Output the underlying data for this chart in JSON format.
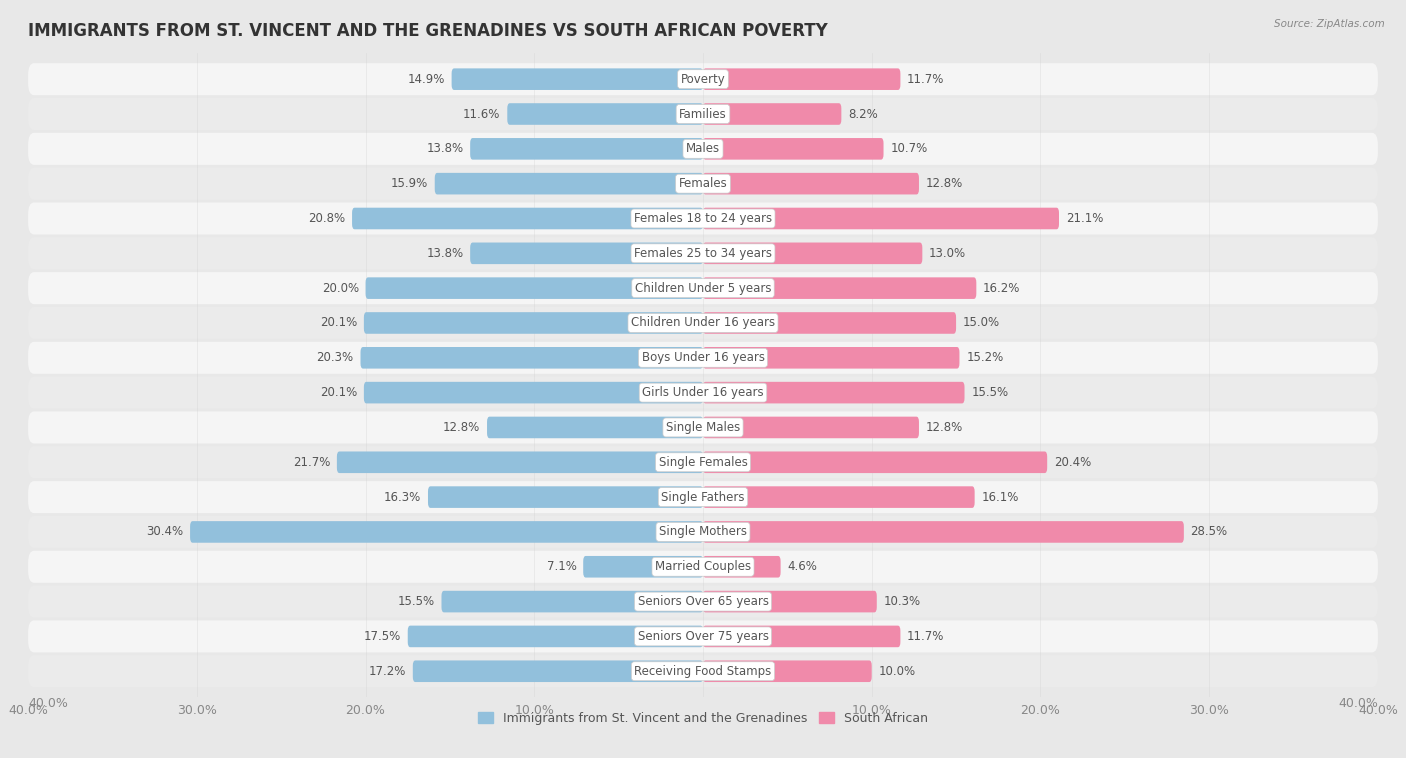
{
  "title": "IMMIGRANTS FROM ST. VINCENT AND THE GRENADINES VS SOUTH AFRICAN POVERTY",
  "source": "Source: ZipAtlas.com",
  "categories": [
    "Poverty",
    "Families",
    "Males",
    "Females",
    "Females 18 to 24 years",
    "Females 25 to 34 years",
    "Children Under 5 years",
    "Children Under 16 years",
    "Boys Under 16 years",
    "Girls Under 16 years",
    "Single Males",
    "Single Females",
    "Single Fathers",
    "Single Mothers",
    "Married Couples",
    "Seniors Over 65 years",
    "Seniors Over 75 years",
    "Receiving Food Stamps"
  ],
  "left_values": [
    14.9,
    11.6,
    13.8,
    15.9,
    20.8,
    13.8,
    20.0,
    20.1,
    20.3,
    20.1,
    12.8,
    21.7,
    16.3,
    30.4,
    7.1,
    15.5,
    17.5,
    17.2
  ],
  "right_values": [
    11.7,
    8.2,
    10.7,
    12.8,
    21.1,
    13.0,
    16.2,
    15.0,
    15.2,
    15.5,
    12.8,
    20.4,
    16.1,
    28.5,
    4.6,
    10.3,
    11.7,
    10.0
  ],
  "left_color": "#92c0dc",
  "right_color": "#f08aaa",
  "left_label": "Immigrants from St. Vincent and the Grenadines",
  "right_label": "South African",
  "xlim": 40.0,
  "bg_color": "#e8e8e8",
  "row_colors": [
    "#f5f5f5",
    "#ebebeb"
  ],
  "bar_height": 0.62,
  "title_fontsize": 12,
  "label_fontsize": 8.5,
  "value_fontsize": 8.5,
  "axis_label_fontsize": 9
}
